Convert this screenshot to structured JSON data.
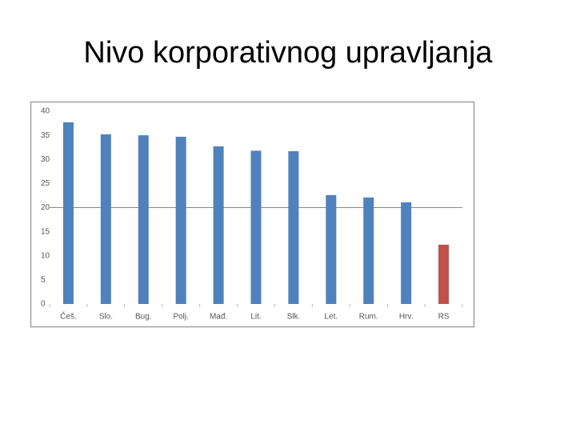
{
  "title": "Nivo korporativnog upravljanja",
  "chart_data": {
    "type": "bar",
    "categories": [
      "Češ.",
      "Slo.",
      "Bug.",
      "Polj.",
      "Mađ.",
      "Lit.",
      "Slk.",
      "Let.",
      "Rum.",
      "Hrv.",
      "RS"
    ],
    "values": [
      37.7,
      35.2,
      35.0,
      34.7,
      32.7,
      31.8,
      31.7,
      22.6,
      22.1,
      21.1,
      12.3
    ],
    "colors": [
      "#4f81bd",
      "#4f81bd",
      "#4f81bd",
      "#4f81bd",
      "#4f81bd",
      "#4f81bd",
      "#4f81bd",
      "#4f81bd",
      "#4f81bd",
      "#4f81bd",
      "#c0504d"
    ],
    "ylim": [
      0,
      40
    ],
    "yticks": [
      0,
      5,
      10,
      15,
      20,
      25,
      30,
      35,
      40
    ],
    "reference_line": 20,
    "grid": false
  }
}
